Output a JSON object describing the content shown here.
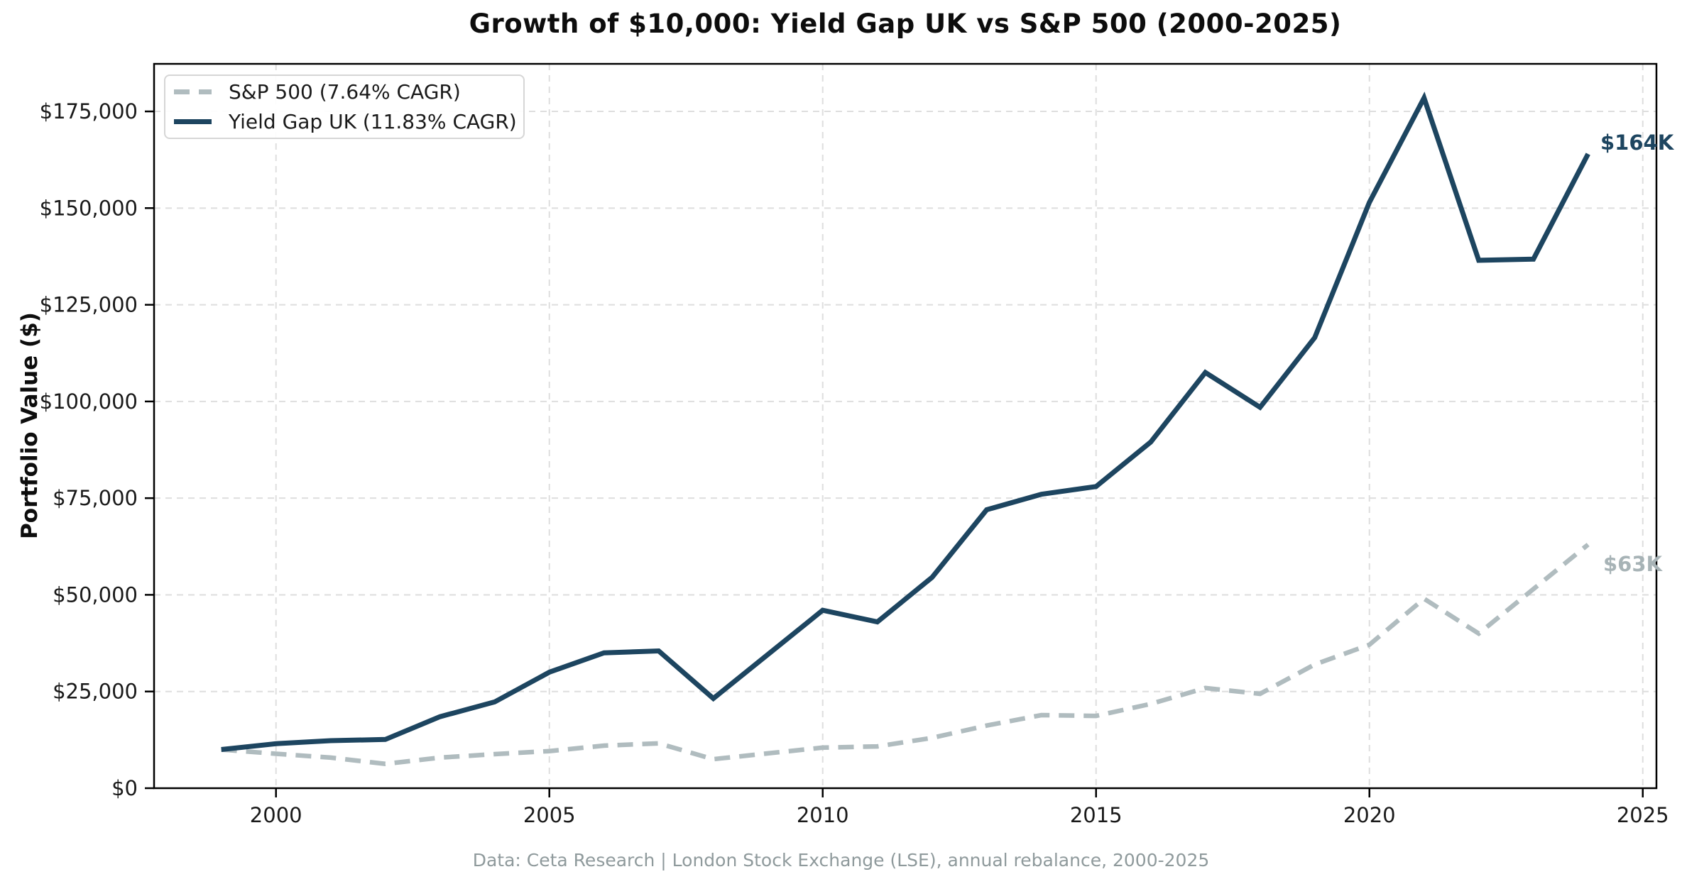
{
  "title": "Growth of $10,000: Yield Gap UK vs S&P 500 (2000-2025)",
  "footer_caption": "Data: Ceta Research | London Stock Exchange (LSE), annual rebalance, 2000-2025",
  "colors": {
    "background": "#ffffff",
    "yield_gap_uk": "#1d4560",
    "sp500": "#b0bcbf",
    "sp500_end_label": "#a7b3b6",
    "grid": "#dedede",
    "axis": "#000000",
    "tick_label": "#1a1a1a",
    "title_text": "#0d0d0d",
    "footer_text": "#8f9a9c"
  },
  "chart_data": {
    "type": "line",
    "title": "Growth of $10,000: Yield Gap UK vs S&P 500 (2000-2025)",
    "xlabel": "",
    "ylabel": "Portfolio Value ($)",
    "grid": true,
    "legend_position": "upper left",
    "xlim": [
      1997.77,
      2025.25
    ],
    "ylim": [
      0,
      187300
    ],
    "x": [
      1999,
      2000,
      2001,
      2002,
      2003,
      2004,
      2005,
      2006,
      2007,
      2008,
      2009,
      2010,
      2011,
      2012,
      2013,
      2014,
      2015,
      2016,
      2017,
      2018,
      2019,
      2020,
      2021,
      2022,
      2023,
      2024
    ],
    "x_ticks": [
      {
        "value": 2000,
        "label": "2000"
      },
      {
        "value": 2005,
        "label": "2005"
      },
      {
        "value": 2010,
        "label": "2010"
      },
      {
        "value": 2015,
        "label": "2015"
      },
      {
        "value": 2020,
        "label": "2020"
      },
      {
        "value": 2025,
        "label": "2025"
      }
    ],
    "y_ticks": [
      {
        "value": 0,
        "label": "$0"
      },
      {
        "value": 25000,
        "label": "$25,000"
      },
      {
        "value": 50000,
        "label": "$50,000"
      },
      {
        "value": 75000,
        "label": "$75,000"
      },
      {
        "value": 100000,
        "label": "$100,000"
      },
      {
        "value": 125000,
        "label": "$125,000"
      },
      {
        "value": 150000,
        "label": "$150,000"
      },
      {
        "value": 175000,
        "label": "$175,000"
      }
    ],
    "series": [
      {
        "name": "S&P 500 (7.64% CAGR)",
        "color": "#b0bcbf",
        "line_style": "dashed",
        "values": [
          10000,
          8900,
          7900,
          6300,
          7900,
          8800,
          9600,
          11000,
          11600,
          7500,
          9000,
          10500,
          10800,
          13000,
          16200,
          18900,
          18700,
          21800,
          25900,
          24400,
          32000,
          37100,
          49000,
          40000,
          51500,
          63000
        ]
      },
      {
        "name": "Yield Gap UK (11.83% CAGR)",
        "color": "#1d4560",
        "line_style": "solid",
        "values": [
          10000,
          11500,
          12300,
          12600,
          18500,
          22300,
          30000,
          35000,
          35500,
          23200,
          34600,
          46000,
          43000,
          54500,
          72000,
          76000,
          78000,
          89500,
          107500,
          98500,
          116500,
          151500,
          178500,
          136500,
          136800,
          164000
        ]
      }
    ],
    "annotations": [
      {
        "series": "Yield Gap UK",
        "text": "$164K",
        "x": 2024,
        "y": 164000
      },
      {
        "series": "S&P 500",
        "text": "$63K",
        "x": 2024,
        "y": 63000
      }
    ]
  }
}
